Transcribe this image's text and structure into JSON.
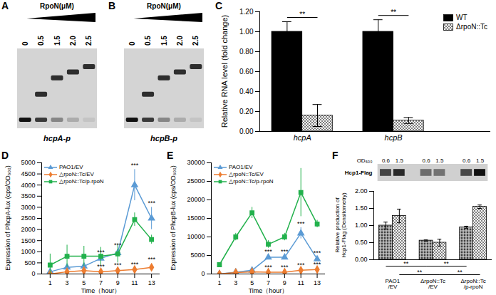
{
  "chart_data": [
    {
      "panel": "A",
      "type": "gel",
      "title": "RpoN(μM)",
      "lanes": [
        0,
        0.5,
        1.5,
        {
          "value": 2,
          "label": "2.0"
        },
        2.5
      ],
      "label": "hcpA-p"
    },
    {
      "panel": "B",
      "type": "gel",
      "title": "RpoN(μM)",
      "lanes": [
        0,
        0.5,
        1.5,
        {
          "value": 2,
          "label": "2.0"
        },
        2.5
      ],
      "label": "hcpB-p"
    },
    {
      "panel": "C",
      "type": "bar",
      "ylabel": "Relative RNA level (fold change)",
      "categories": [
        "hcpA",
        "hcpB"
      ],
      "series": [
        {
          "name": "WT",
          "color": "#000000",
          "values": [
            1.0,
            1.0
          ],
          "errors": [
            0.1,
            0.12
          ]
        },
        {
          "name": "ΔrpoN::Tc",
          "color": "#7f7f7f",
          "values": [
            0.16,
            0.11
          ],
          "errors": [
            0.11,
            0.03
          ]
        }
      ],
      "ylim": [
        0,
        1.2
      ],
      "yticks": [
        {
          "value": 0,
          "label": "0.00"
        },
        {
          "value": 0.2,
          "label": "0.20"
        },
        {
          "value": 0.4,
          "label": "0.40"
        },
        {
          "value": 0.6,
          "label": "0.60"
        },
        {
          "value": 0.8,
          "label": "0.80"
        },
        {
          "value": 1,
          "label": "1.00"
        },
        {
          "value": 1.2,
          "label": "1.20"
        }
      ],
      "legend": "upper-right",
      "significance": [
        {
          "from": {
            "category": "hcpA",
            "series": "WT"
          },
          "to": {
            "category": "hcpA",
            "series": "ΔrpoN::Tc"
          },
          "label": "**"
        },
        {
          "from": {
            "category": "hcpB",
            "series": "WT"
          },
          "to": {
            "category": "hcpB",
            "series": "ΔrpoN::Tc"
          },
          "label": "**"
        }
      ]
    },
    {
      "panel": "D",
      "type": "line",
      "ylabel": "Expression of PhcpA-lux (cps/OD₆₀₀)",
      "xlabel": "Time（hour）",
      "x": [
        1,
        3,
        5,
        7,
        9,
        11,
        13
      ],
      "series": [
        {
          "name": "PAO1/EV",
          "color": "#5b9bd5",
          "marker": "triangle",
          "values": [
            100,
            300,
            350,
            700,
            950,
            4000,
            2500
          ],
          "errors": [
            50,
            100,
            100,
            100,
            150,
            700,
            500
          ]
        },
        {
          "name": "△rpoN::Tc/EV",
          "color": "#ed7d31",
          "marker": "diamond",
          "values": [
            0,
            100,
            150,
            100,
            150,
            200,
            300
          ],
          "errors": [
            0,
            50,
            50,
            30,
            50,
            50,
            150
          ]
        },
        {
          "name": "△rpoN::Tc/p-rpoN",
          "color": "#22b14c",
          "marker": "square",
          "values": [
            400,
            800,
            800,
            800,
            900,
            2450,
            1550
          ],
          "errors": [
            500,
            500,
            450,
            400,
            400,
            300,
            200
          ]
        }
      ],
      "xlim": [
        0,
        14
      ],
      "xticks": [
        1,
        3,
        5,
        7,
        9,
        11,
        13
      ],
      "ylim": [
        0,
        5000
      ],
      "yticks": [
        0,
        500,
        1000,
        1500,
        2000,
        2500,
        3000,
        3500,
        4000,
        4500,
        5000
      ],
      "legend": "upper-left",
      "annotations": [
        {
          "x": 7,
          "series": "PAO1/EV",
          "label": "***"
        },
        {
          "x": 7,
          "series": "△rpoN::Tc/EV",
          "label": "***"
        },
        {
          "x": 9,
          "series": "PAO1/EV",
          "label": "***"
        },
        {
          "x": 9,
          "series": "△rpoN::Tc/EV",
          "label": "***"
        },
        {
          "x": 11,
          "series": "PAO1/EV",
          "label": "***"
        },
        {
          "x": 11,
          "series": "△rpoN::Tc/EV",
          "label": "***"
        },
        {
          "x": 13,
          "series": "PAO1/EV",
          "label": "***"
        },
        {
          "x": 13,
          "series": "△rpoN::Tc/EV",
          "label": "***"
        }
      ]
    },
    {
      "panel": "E",
      "type": "line",
      "ylabel": "Expression of PhcpB-lux (cps/OD₆₀₀)",
      "xlabel": "Time（hour）",
      "x": [
        1,
        3,
        5,
        7,
        9,
        11,
        13
      ],
      "series": [
        {
          "name": "PAO1/EV",
          "color": "#5b9bd5",
          "marker": "triangle",
          "values": [
            0,
            500,
            1000,
            4500,
            4500,
            11000,
            4000
          ],
          "errors": [
            0,
            200,
            300,
            500,
            500,
            1500,
            500
          ]
        },
        {
          "name": "△rpoN::Tc/EV",
          "color": "#ed7d31",
          "marker": "diamond",
          "values": [
            0,
            400,
            600,
            500,
            500,
            1000,
            1200
          ],
          "errors": [
            0,
            100,
            100,
            100,
            100,
            200,
            200
          ]
        },
        {
          "name": "△rpoN::Tc/p-rpoN",
          "color": "#22b14c",
          "marker": "square",
          "values": [
            2500,
            10000,
            16500,
            8000,
            10000,
            22000,
            13500
          ],
          "errors": [
            500,
            1000,
            1500,
            1000,
            1000,
            6500,
            1000
          ]
        }
      ],
      "xlim": [
        0,
        14
      ],
      "xticks": [
        1,
        3,
        5,
        7,
        9,
        11,
        13
      ],
      "ylim": [
        0,
        30000
      ],
      "yticks": [
        0,
        5000,
        10000,
        15000,
        20000,
        25000,
        30000
      ],
      "legend": "upper-left",
      "annotations": [
        {
          "x": 7,
          "series": "PAO1/EV",
          "label": "***"
        },
        {
          "x": 7,
          "series": "△rpoN::Tc/EV",
          "label": "***"
        },
        {
          "x": 9,
          "series": "PAO1/EV",
          "label": "***"
        },
        {
          "x": 9,
          "series": "△rpoN::Tc/EV",
          "label": "***"
        },
        {
          "x": 11,
          "series": "PAO1/EV",
          "label": "***"
        },
        {
          "x": 11,
          "series": "△rpoN::Tc/EV",
          "label": "***"
        },
        {
          "x": 13,
          "series": "PAO1/EV",
          "label": "***"
        },
        {
          "x": 13,
          "series": "△rpoN::Tc/EV",
          "label": "***"
        }
      ]
    },
    {
      "panel": "F",
      "type": "bar",
      "ylabel": "Relative production of Hcp1-Flag (Densitometry)",
      "categories": [
        "PAO1/EV",
        "ΔrpoN::Tc/EV",
        "ΔrpoN::Tc/p-rpoN"
      ],
      "series": [
        {
          "name": "0.6",
          "color": "#404040",
          "values": [
            1.0,
            0.56,
            0.95
          ],
          "errors": [
            0.1,
            0.02,
            0.03
          ]
        },
        {
          "name": "1.5",
          "color": "#808080",
          "values": [
            1.28,
            0.5,
            1.55
          ],
          "errors": [
            0.2,
            0.1,
            0.05
          ]
        }
      ],
      "ylim": [
        0,
        2
      ],
      "yticks": [
        {
          "value": 0,
          "label": "0.00"
        },
        {
          "value": 0.5,
          "label": "0.50"
        },
        {
          "value": 1,
          "label": "1.00"
        },
        {
          "value": 1.5,
          "label": "1.50"
        },
        {
          "value": 2,
          "label": "2.00"
        }
      ],
      "blot": {
        "label": "Hcp1-Flag",
        "lane_label": "OD₆₀₀"
      },
      "significance": [
        {
          "from": {
            "category": "PAO1/EV",
            "series": "0.6"
          },
          "to": {
            "category": "ΔrpoN::Tc/EV",
            "series": "0.6"
          },
          "label": "**"
        },
        {
          "from": {
            "category": "PAO1/EV",
            "series": "1.5"
          },
          "to": {
            "category": "ΔrpoN::Tc/EV",
            "series": "1.5"
          },
          "label": "**"
        },
        {
          "from": {
            "category": "ΔrpoN::Tc/EV",
            "series": "0.6"
          },
          "to": {
            "category": "ΔrpoN::Tc/p-rpoN",
            "series": "0.6"
          },
          "label": "**"
        },
        {
          "from": {
            "category": "ΔrpoN::Tc/EV",
            "series": "1.5"
          },
          "to": {
            "category": "ΔrpoN::Tc/p-rpoN",
            "series": "1.5"
          },
          "label": "**"
        }
      ]
    }
  ]
}
